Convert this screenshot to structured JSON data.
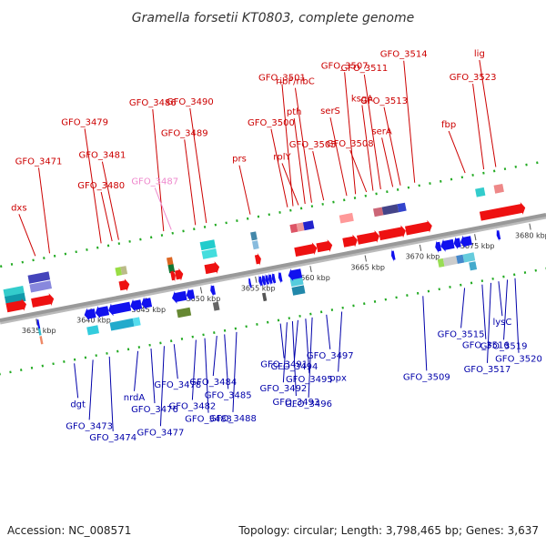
{
  "title": "Gramella forsetii KT0803, complete genome",
  "accession": "Accession: NC_008571",
  "topology": "Topology: circular; Length: 3,798,465 bp; Genes: 3,637",
  "colors": {
    "forward_label": "#cc0000",
    "reverse_label": "#0000aa",
    "faded_label": "#ee88cc",
    "track": "#999999",
    "forward_gene": "#ee1111",
    "reverse_gene": "#1111ee",
    "dots": "#22aa22"
  },
  "ticks": [
    {
      "label": "3635 kbp",
      "pos": 3635
    },
    {
      "label": "3640 kbp",
      "pos": 3640
    },
    {
      "label": "3645 kbp",
      "pos": 3645
    },
    {
      "label": "3650 kbp",
      "pos": 3650
    },
    {
      "label": "3655 kbp",
      "pos": 3655
    },
    {
      "label": "3660 kbp",
      "pos": 3660
    },
    {
      "label": "3665 kbp",
      "pos": 3665
    },
    {
      "label": "3670 kbp",
      "pos": 3670
    },
    {
      "label": "3675 kbp",
      "pos": 3675
    },
    {
      "label": "3680 kbp",
      "pos": 3680
    }
  ],
  "forward_labels": [
    {
      "text": "dxs",
      "anchor": 3636.0,
      "style": "normal"
    },
    {
      "text": "GFO_3471",
      "anchor": 3637.3,
      "style": "normal"
    },
    {
      "text": "GFO_3479",
      "anchor": 3642.0,
      "style": "normal"
    },
    {
      "text": "GFO_3480",
      "anchor": 3643.0,
      "style": "normal"
    },
    {
      "text": "GFO_3481",
      "anchor": 3643.6,
      "style": "normal"
    },
    {
      "text": "GFO_3486",
      "anchor": 3647.7,
      "style": "normal"
    },
    {
      "text": "GFO_3487",
      "anchor": 3648.4,
      "style": "faded"
    },
    {
      "text": "GFO_3489",
      "anchor": 3650.6,
      "style": "normal"
    },
    {
      "text": "GFO_3490",
      "anchor": 3651.6,
      "style": "normal"
    },
    {
      "text": "prs",
      "anchor": 3655.6,
      "style": "normal"
    },
    {
      "text": "GFO_3500",
      "anchor": 3659.0,
      "style": "normal"
    },
    {
      "text": "GFO_3501",
      "anchor": 3659.5,
      "style": "normal"
    },
    {
      "text": "rplY",
      "anchor": 3660.0,
      "style": "normal"
    },
    {
      "text": "pth",
      "anchor": 3660.6,
      "style": "normal"
    },
    {
      "text": "ribF/ribC",
      "anchor": 3661.2,
      "style": "normal"
    },
    {
      "text": "GFO_3505",
      "anchor": 3662.3,
      "style": "normal"
    },
    {
      "text": "serS",
      "anchor": 3664.4,
      "style": "normal"
    },
    {
      "text": "GFO_3507",
      "anchor": 3665.2,
      "style": "normal"
    },
    {
      "text": "GFO_3508",
      "anchor": 3666.2,
      "style": "normal"
    },
    {
      "text": "ksgA",
      "anchor": 3666.8,
      "style": "normal"
    },
    {
      "text": "GFO_3511",
      "anchor": 3667.5,
      "style": "normal"
    },
    {
      "text": "serA",
      "anchor": 3668.6,
      "style": "normal"
    },
    {
      "text": "GFO_3513",
      "anchor": 3669.3,
      "style": "normal"
    },
    {
      "text": "GFO_3514",
      "anchor": 3670.6,
      "style": "normal"
    },
    {
      "text": "fbp",
      "anchor": 3675.2,
      "style": "normal"
    },
    {
      "text": "GFO_3523",
      "anchor": 3676.9,
      "style": "normal"
    },
    {
      "text": "lig",
      "anchor": 3678.0,
      "style": "normal"
    }
  ],
  "reverse_labels": [
    {
      "text": "dgt",
      "anchor": 3637.6
    },
    {
      "text": "GFO_3473",
      "anchor": 3639.3
    },
    {
      "text": "GFO_3474",
      "anchor": 3640.8
    },
    {
      "text": "nrdA",
      "anchor": 3643.4
    },
    {
      "text": "GFO_3476",
      "anchor": 3644.6
    },
    {
      "text": "GFO_3477",
      "anchor": 3645.8
    },
    {
      "text": "GFO_3478",
      "anchor": 3646.7
    },
    {
      "text": "GFO_3482",
      "anchor": 3648.7
    },
    {
      "text": "GFO_3483",
      "anchor": 3649.5
    },
    {
      "text": "GFO_3484",
      "anchor": 3650.6
    },
    {
      "text": "GFO_3485",
      "anchor": 3651.3
    },
    {
      "text": "GFO_3488",
      "anchor": 3652.4
    },
    {
      "text": "GFO_3491",
      "anchor": 3656.4
    },
    {
      "text": "GFO_3492",
      "anchor": 3657.0
    },
    {
      "text": "GFO_3493",
      "anchor": 3657.5
    },
    {
      "text": "GFO_3494",
      "anchor": 3658.0
    },
    {
      "text": "GFO_3495",
      "anchor": 3658.7
    },
    {
      "text": "GFO_3496",
      "anchor": 3659.3
    },
    {
      "text": "GFO_3497",
      "anchor": 3660.6
    },
    {
      "text": "ppx",
      "anchor": 3662.0
    },
    {
      "text": "GFO_3509",
      "anchor": 3669.4
    },
    {
      "text": "GFO_3515",
      "anchor": 3673.2
    },
    {
      "text": "GFO_3516",
      "anchor": 3674.8
    },
    {
      "text": "GFO_3517",
      "anchor": 3675.6
    },
    {
      "text": "lysC",
      "anchor": 3676.3
    },
    {
      "text": "GFO_3519",
      "anchor": 3677.1
    },
    {
      "text": "GFO_3520",
      "anchor": 3677.8
    }
  ],
  "forward_genes": [
    {
      "start": 3632.6,
      "end": 3634.4,
      "kind": "arrow"
    },
    {
      "start": 3634.9,
      "end": 3636.9,
      "kind": "arrow"
    },
    {
      "start": 3642.9,
      "end": 3643.8,
      "kind": "arrow"
    },
    {
      "start": 3647.6,
      "end": 3648.0,
      "kind": "arrow"
    },
    {
      "start": 3648.0,
      "end": 3648.7,
      "kind": "arrow"
    },
    {
      "start": 3650.7,
      "end": 3652.0,
      "kind": "arrow"
    },
    {
      "start": 3655.3,
      "end": 3655.8,
      "kind": "arrow"
    },
    {
      "start": 3658.9,
      "end": 3660.9,
      "kind": "arrow"
    },
    {
      "start": 3660.9,
      "end": 3662.3,
      "kind": "arrow"
    },
    {
      "start": 3663.3,
      "end": 3664.6,
      "kind": "arrow"
    },
    {
      "start": 3664.6,
      "end": 3666.6,
      "kind": "arrow"
    },
    {
      "start": 3666.6,
      "end": 3669.0,
      "kind": "arrow"
    },
    {
      "start": 3669.0,
      "end": 3671.4,
      "kind": "arrow"
    },
    {
      "start": 3675.8,
      "end": 3679.9,
      "kind": "arrow"
    }
  ],
  "reverse_genes": [
    {
      "start": 3635.0,
      "end": 3635.2,
      "kind": "arrow"
    },
    {
      "start": 3639.3,
      "end": 3640.3,
      "kind": "arrow"
    },
    {
      "start": 3640.3,
      "end": 3641.5,
      "kind": "arrow"
    },
    {
      "start": 3641.5,
      "end": 3643.5,
      "kind": "arrow"
    },
    {
      "start": 3643.5,
      "end": 3644.5,
      "kind": "arrow"
    },
    {
      "start": 3644.5,
      "end": 3645.4,
      "kind": "arrow"
    },
    {
      "start": 3647.3,
      "end": 3648.6,
      "kind": "arrow"
    },
    {
      "start": 3648.6,
      "end": 3649.3,
      "kind": "arrow"
    },
    {
      "start": 3650.8,
      "end": 3651.2,
      "kind": "arrow"
    },
    {
      "start": 3654.3,
      "end": 3654.5,
      "kind": "arrow"
    },
    {
      "start": 3655.2,
      "end": 3655.5,
      "kind": "arrow"
    },
    {
      "start": 3655.5,
      "end": 3655.8,
      "kind": "arrow"
    },
    {
      "start": 3655.8,
      "end": 3656.1,
      "kind": "arrow"
    },
    {
      "start": 3656.1,
      "end": 3656.4,
      "kind": "arrow"
    },
    {
      "start": 3656.4,
      "end": 3656.7,
      "kind": "arrow"
    },
    {
      "start": 3657.0,
      "end": 3657.3,
      "kind": "arrow"
    },
    {
      "start": 3657.9,
      "end": 3659.1,
      "kind": "arrow"
    },
    {
      "start": 3667.3,
      "end": 3667.6,
      "kind": "arrow"
    },
    {
      "start": 3671.3,
      "end": 3671.8,
      "kind": "arrow"
    },
    {
      "start": 3671.8,
      "end": 3673.0,
      "kind": "arrow"
    },
    {
      "start": 3673.0,
      "end": 3673.6,
      "kind": "arrow"
    },
    {
      "start": 3673.6,
      "end": 3674.6,
      "kind": "arrow"
    },
    {
      "start": 3676.9,
      "end": 3677.2,
      "kind": "arrow"
    }
  ],
  "forward_features": [
    {
      "start": 3632.6,
      "end": 3634.4,
      "row": 1,
      "color": "#33cccc"
    },
    {
      "start": 3632.6,
      "end": 3634.4,
      "row": 2,
      "color": "#1199aa"
    },
    {
      "start": 3635.0,
      "end": 3636.9,
      "row": 0,
      "color": "#4444bb"
    },
    {
      "start": 3635.0,
      "end": 3636.9,
      "row": 1,
      "color": "#8888dd"
    },
    {
      "start": 3642.8,
      "end": 3643.3,
      "row": 1,
      "color": "#99dd44"
    },
    {
      "start": 3643.3,
      "end": 3643.8,
      "row": 1,
      "color": "#bbbb88"
    },
    {
      "start": 3647.5,
      "end": 3648.0,
      "row": 1,
      "color": "#dd6622"
    },
    {
      "start": 3647.5,
      "end": 3648.0,
      "row": 2,
      "color": "#117733"
    },
    {
      "start": 3650.7,
      "end": 3652.0,
      "row": 0,
      "color": "#22cccc"
    },
    {
      "start": 3650.7,
      "end": 3652.0,
      "row": 1,
      "color": "#44dddd"
    },
    {
      "start": 3655.3,
      "end": 3655.8,
      "row": 0,
      "color": "#4488aa"
    },
    {
      "start": 3655.3,
      "end": 3655.8,
      "row": 1,
      "color": "#88bbdd"
    },
    {
      "start": 3658.9,
      "end": 3659.5,
      "row": 0,
      "color": "#dd5566"
    },
    {
      "start": 3659.5,
      "end": 3660.1,
      "row": 0,
      "color": "#ee9999"
    },
    {
      "start": 3660.1,
      "end": 3661.0,
      "row": 0,
      "color": "#2222cc"
    },
    {
      "start": 3663.4,
      "end": 3664.6,
      "row": 0,
      "color": "#ff9999"
    },
    {
      "start": 3666.5,
      "end": 3667.3,
      "row": 0,
      "color": "#cc6677"
    },
    {
      "start": 3667.3,
      "end": 3668.7,
      "row": 0,
      "color": "#444488"
    },
    {
      "start": 3668.7,
      "end": 3669.4,
      "row": 0,
      "color": "#3344cc"
    },
    {
      "start": 3675.8,
      "end": 3676.6,
      "row": 0,
      "color": "#33cccc"
    },
    {
      "start": 3677.5,
      "end": 3678.3,
      "row": 0,
      "color": "#ee8888"
    }
  ],
  "reverse_features": [
    {
      "start": 3635.0,
      "end": 3635.2,
      "row": 1,
      "color": "#ee8866"
    },
    {
      "start": 3635.0,
      "end": 3635.2,
      "row": 2,
      "color": "#33bbcc"
    },
    {
      "start": 3639.3,
      "end": 3640.3,
      "row": 1,
      "color": "#33ccdd"
    },
    {
      "start": 3641.4,
      "end": 3643.5,
      "row": 1,
      "color": "#22aacc"
    },
    {
      "start": 3643.5,
      "end": 3644.1,
      "row": 1,
      "color": "#55ddee"
    },
    {
      "start": 3647.5,
      "end": 3648.7,
      "row": 1,
      "color": "#668833"
    },
    {
      "start": 3650.8,
      "end": 3651.3,
      "row": 1,
      "color": "#666666"
    },
    {
      "start": 3655.3,
      "end": 3655.6,
      "row": 1,
      "color": "#555555"
    },
    {
      "start": 3658.0,
      "end": 3659.1,
      "row": 1,
      "color": "#2288aa"
    },
    {
      "start": 3658.0,
      "end": 3659.1,
      "row": 2,
      "color": "#55ccdd"
    },
    {
      "start": 3671.3,
      "end": 3671.8,
      "row": 1,
      "color": "#99dd55"
    },
    {
      "start": 3671.8,
      "end": 3673.0,
      "row": 1,
      "color": "#cccccc"
    },
    {
      "start": 3673.0,
      "end": 3673.6,
      "row": 1,
      "color": "#4488cc"
    },
    {
      "start": 3673.6,
      "end": 3674.6,
      "row": 1,
      "color": "#66ccdd"
    },
    {
      "start": 3674.0,
      "end": 3674.6,
      "row": 0,
      "color": "#44aacc"
    }
  ]
}
